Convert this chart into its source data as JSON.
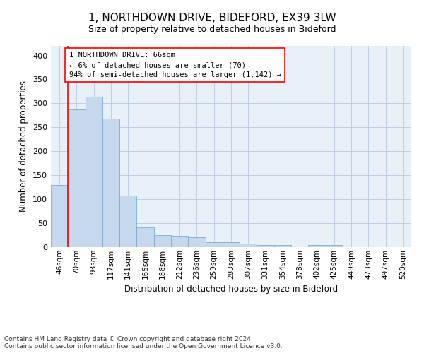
{
  "title_line1": "1, NORTHDOWN DRIVE, BIDEFORD, EX39 3LW",
  "title_line2": "Size of property relative to detached houses in Bideford",
  "xlabel": "Distribution of detached houses by size in Bideford",
  "ylabel": "Number of detached properties",
  "footnote": "Contains HM Land Registry data © Crown copyright and database right 2024.\nContains public sector information licensed under the Open Government Licence v3.0.",
  "categories": [
    "46sqm",
    "70sqm",
    "93sqm",
    "117sqm",
    "141sqm",
    "165sqm",
    "188sqm",
    "212sqm",
    "236sqm",
    "259sqm",
    "283sqm",
    "307sqm",
    "331sqm",
    "354sqm",
    "378sqm",
    "402sqm",
    "425sqm",
    "449sqm",
    "473sqm",
    "497sqm",
    "520sqm"
  ],
  "values": [
    130,
    287,
    314,
    268,
    108,
    42,
    25,
    23,
    20,
    11,
    10,
    8,
    5,
    4,
    0,
    4,
    4,
    0,
    0,
    0,
    0
  ],
  "bar_color": "#c5d8ee",
  "bar_edge_color": "#7aaed0",
  "ylim": [
    0,
    420
  ],
  "yticks": [
    0,
    50,
    100,
    150,
    200,
    250,
    300,
    350,
    400
  ],
  "grid_color": "#c0cfe0",
  "bg_color": "#e8f0f8",
  "annotation_text": "1 NORTHDOWN DRIVE: 66sqm\n← 6% of detached houses are smaller (70)\n94% of semi-detached houses are larger (1,142) →",
  "vline_x_index": 0.5,
  "title1_fontsize": 11,
  "title2_fontsize": 9,
  "footnote_fontsize": 6.5
}
